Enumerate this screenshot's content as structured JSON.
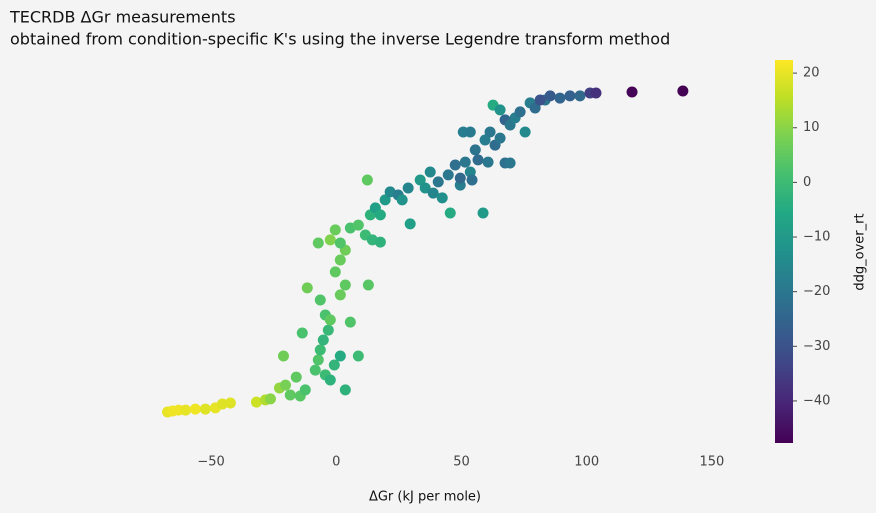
{
  "chart_data": {
    "type": "scatter",
    "title": "TECRDB ΔGr measurements",
    "subtitle": "obtained from condition-specific K's using the inverse Legendre transform method",
    "x_label": "ΔGr (kJ per mole)",
    "colormap": "viridis",
    "xlim": [
      -80,
      170
    ],
    "xticks": [
      {
        "value": -50,
        "label": "−50"
      },
      0,
      50,
      100,
      150
    ],
    "ylim": [
      -10,
      110
    ],
    "grid": false,
    "colorbar": {
      "label": "ddg_over_rt",
      "lim": [
        -47.7,
        22.4
      ],
      "ticks": [
        {
          "value": -40,
          "label": "−40"
        },
        {
          "value": -30,
          "label": "−30"
        },
        {
          "value": -20,
          "label": "−20"
        },
        {
          "value": -10,
          "label": "−10"
        },
        0,
        10,
        20
      ]
    },
    "x": [
      -67.4,
      -65.4,
      -63.0,
      -60.2,
      -56.3,
      -52.3,
      -48.3,
      -45.5,
      -42.3,
      -31.9,
      -28.3,
      -26.3,
      -22.7,
      -20.3,
      -18.4,
      -14.4,
      -12.4,
      -21.1,
      -16.0,
      -13.6,
      -11.6,
      -8.4,
      -7.2,
      -6.4,
      -5.2,
      -3.2,
      -4.4,
      -2.4,
      -0.8,
      1.6,
      3.6,
      8.8,
      -6.4,
      -4.4,
      -2.4,
      1.6,
      3.6,
      5.6,
      -0.4,
      1.6,
      3.6,
      12.8,
      -2.4,
      -0.4,
      -7.2,
      1.6,
      5.6,
      8.8,
      11.6,
      14.4,
      17.6,
      12.4,
      13.6,
      15.6,
      17.6,
      19.5,
      21.5,
      24.7,
      26.3,
      28.7,
      29.5,
      33.5,
      35.5,
      37.5,
      40.7,
      38.7,
      42.3,
      45.5,
      44.7,
      47.5,
      49.5,
      51.5,
      53.5,
      55.5,
      56.6,
      58.6,
      59.4,
      61.4,
      63.4,
      65.4,
      67.4,
      69.4,
      62.6,
      65.4,
      67.4,
      69.4,
      71.4,
      73.4,
      75.4,
      77.4,
      79.4,
      83.4,
      85.4,
      81.4,
      89.3,
      93.3,
      97.3,
      101.3,
      103.7,
      60.6,
      54.2,
      49.5,
      50.7,
      53.5,
      118.1,
      138.4
    ],
    "y": [
      0,
      0.3,
      0.6,
      0.6,
      0.9,
      0.9,
      1.3,
      2.5,
      2.8,
      3.1,
      3.8,
      4.1,
      7.5,
      8.4,
      5.3,
      5.0,
      6.9,
      17.5,
      10.9,
      24.7,
      38.8,
      13.1,
      16.3,
      19.4,
      22.5,
      25.6,
      11.6,
      10.0,
      14.7,
      17.5,
      6.9,
      17.5,
      35.0,
      30.3,
      28.8,
      36.6,
      39.7,
      28.1,
      43.8,
      47.5,
      50.6,
      39.7,
      53.8,
      56.9,
      52.8,
      52.8,
      57.5,
      58.4,
      55.3,
      53.8,
      53.1,
      72.5,
      61.6,
      63.8,
      61.6,
      66.3,
      68.8,
      67.8,
      66.3,
      70.0,
      58.8,
      72.5,
      70.0,
      75.0,
      71.9,
      68.4,
      66.9,
      62.2,
      74.1,
      77.2,
      70.9,
      78.1,
      75.0,
      81.9,
      78.8,
      62.2,
      85.0,
      87.5,
      83.4,
      85.6,
      77.8,
      77.8,
      95.9,
      94.4,
      91.3,
      89.7,
      91.9,
      93.8,
      87.5,
      96.6,
      95.0,
      97.5,
      98.8,
      97.5,
      98.1,
      98.8,
      98.8,
      99.7,
      99.7,
      78.1,
      72.5,
      73.1,
      87.5,
      87.5,
      100.0,
      100.3
    ],
    "c": [
      20,
      21,
      21,
      20,
      21,
      19,
      20,
      19,
      19,
      17,
      14,
      10,
      11,
      8,
      5,
      4,
      2,
      7,
      5,
      2,
      7,
      2,
      3,
      0,
      -2,
      -1,
      0,
      -3,
      -2,
      -5,
      -3,
      0,
      3,
      2,
      5,
      6,
      5,
      3,
      5,
      6,
      7,
      4,
      9,
      6,
      5,
      3,
      2,
      3,
      0,
      -2,
      -3,
      5,
      -3,
      -8,
      -5,
      -10,
      -15,
      -18,
      -12,
      -16,
      -8,
      -10,
      -12,
      -15,
      -20,
      -16,
      -13,
      -5,
      -20,
      -22,
      -18,
      -20,
      -16,
      -21,
      -23,
      -10,
      -18,
      -20,
      -23,
      -20,
      -22,
      -20,
      -5,
      -12,
      -25,
      -20,
      -18,
      -22,
      -15,
      -18,
      -23,
      -20,
      -28,
      -30,
      -25,
      -26,
      -24,
      -35,
      -38,
      -20,
      -22,
      -24,
      -18,
      -19,
      -47,
      -48
    ]
  }
}
